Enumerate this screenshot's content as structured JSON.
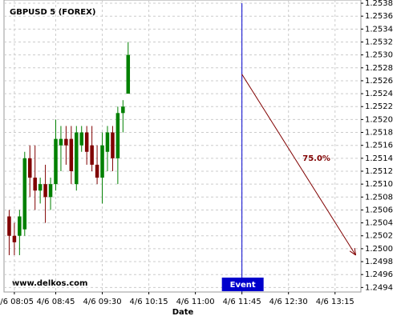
{
  "chart_data": {
    "type": "candlestick",
    "title": "GBPUSD 5 (FOREX)",
    "x_label": "Date",
    "watermark": "www.delkos.com",
    "x": [
      "4/6 08:00",
      "4/6 08:05",
      "4/6 08:10",
      "4/6 08:15",
      "4/6 08:20",
      "4/6 08:25",
      "4/6 08:30",
      "4/6 08:35",
      "4/6 08:40",
      "4/6 08:45",
      "4/6 08:50",
      "4/6 08:55",
      "4/6 09:00",
      "4/6 09:05",
      "4/6 09:10",
      "4/6 09:15",
      "4/6 09:20",
      "4/6 09:25",
      "4/6 09:30",
      "4/6 09:35",
      "4/6 09:40",
      "4/6 09:45",
      "4/6 09:50",
      "4/6 09:55"
    ],
    "open": [
      1.2505,
      1.2502,
      1.2502,
      1.2503,
      1.2514,
      1.2511,
      1.2509,
      1.251,
      1.2508,
      1.251,
      1.2516,
      1.2517,
      1.2517,
      1.251,
      1.2516,
      1.2518,
      1.2516,
      1.2513,
      1.2511,
      1.2515,
      1.2518,
      1.2514,
      1.2521,
      1.2524
    ],
    "high": [
      1.2506,
      1.2504,
      1.2506,
      1.2515,
      1.2516,
      1.2516,
      1.2511,
      1.2513,
      1.2511,
      1.252,
      1.2519,
      1.2519,
      1.2519,
      1.2519,
      1.2519,
      1.2519,
      1.2519,
      1.2516,
      1.2518,
      1.2519,
      1.2519,
      1.2522,
      1.2523,
      1.2532
    ],
    "low": [
      1.2499,
      1.2499,
      1.2499,
      1.2502,
      1.2508,
      1.2506,
      1.2507,
      1.2504,
      1.2506,
      1.2509,
      1.2512,
      1.2513,
      1.251,
      1.2509,
      1.2515,
      1.2513,
      1.2512,
      1.251,
      1.2507,
      1.2512,
      1.2512,
      1.251,
      1.2518,
      1.2524
    ],
    "close": [
      1.2502,
      1.2501,
      1.2505,
      1.2514,
      1.2511,
      1.2509,
      1.251,
      1.2508,
      1.251,
      1.2517,
      1.2517,
      1.2516,
      1.2512,
      1.2518,
      1.2518,
      1.2515,
      1.2513,
      1.2511,
      1.2516,
      1.2518,
      1.2514,
      1.2521,
      1.2522,
      1.253
    ],
    "up_color": "#008000",
    "down_color": "#800000",
    "xlim": [
      "4/6 07:55",
      "4/6 13:40"
    ],
    "xticks": [
      "4/6 08:05",
      "4/6 08:45",
      "4/6 09:30",
      "4/6 10:15",
      "4/6 11:00",
      "4/6 11:45",
      "4/6 12:30",
      "4/6 13:15"
    ],
    "ylim": [
      1.24933,
      1.25385
    ],
    "yticks": [
      {
        "value": 1.2494,
        "label": "1.2494"
      },
      {
        "value": 1.2496,
        "label": "1.2496"
      },
      {
        "value": 1.2498,
        "label": "1.2498"
      },
      {
        "value": 1.25,
        "label": "1.2500"
      },
      {
        "value": 1.2502,
        "label": "1.2502"
      },
      {
        "value": 1.2504,
        "label": "1.2504"
      },
      {
        "value": 1.2506,
        "label": "1.2506"
      },
      {
        "value": 1.2508,
        "label": "1.2508"
      },
      {
        "value": 1.251,
        "label": "1.2510"
      },
      {
        "value": 1.2512,
        "label": "1.2512"
      },
      {
        "value": 1.2514,
        "label": "1.2514"
      },
      {
        "value": 1.2516,
        "label": "1.2516"
      },
      {
        "value": 1.2518,
        "label": "1.2518"
      },
      {
        "value": 1.252,
        "label": "1.2520"
      },
      {
        "value": 1.2522,
        "label": "1.2522"
      },
      {
        "value": 1.2524,
        "label": "1.2524"
      },
      {
        "value": 1.2526,
        "label": "1.2526"
      },
      {
        "value": 1.2528,
        "label": "1.2528"
      },
      {
        "value": 1.253,
        "label": "1.2530"
      },
      {
        "value": 1.2532,
        "label": "1.2532"
      },
      {
        "value": 1.2534,
        "label": "1.2534"
      },
      {
        "value": 1.2536,
        "label": "1.2536"
      },
      {
        "value": 1.2538,
        "label": "1.2538"
      }
    ],
    "grid": true,
    "event": {
      "x": "4/6 11:45",
      "label": "Event",
      "color": "#0000cc"
    },
    "arrow": {
      "x0": "4/6 11:45",
      "y0": 1.2527,
      "x1": "4/6 13:35",
      "y1": 1.2499,
      "label": "75.0%",
      "color": "#800000"
    }
  }
}
